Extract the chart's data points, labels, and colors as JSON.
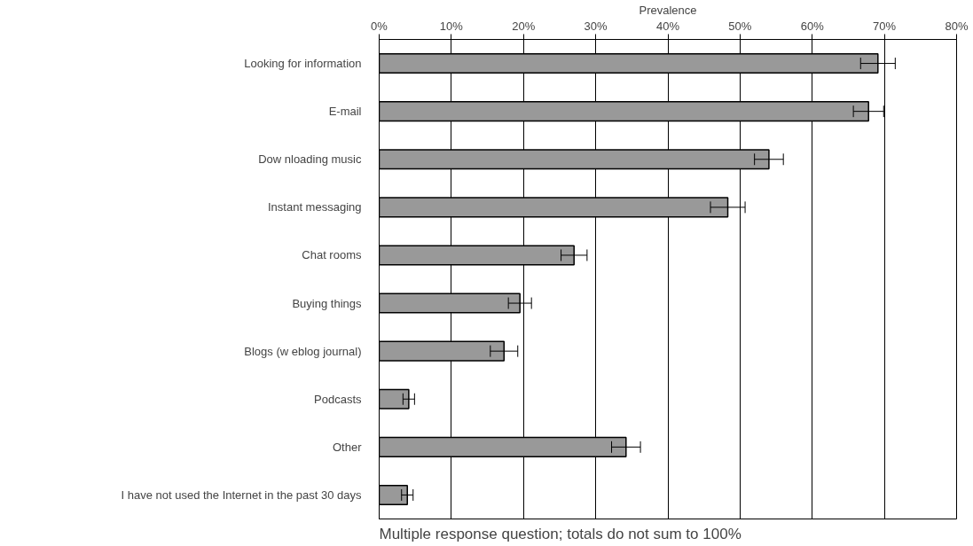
{
  "chart_data": {
    "type": "bar",
    "orientation": "horizontal",
    "xlabel": "Prevalence",
    "categories": [
      "Looking for information",
      "E-mail",
      "Dow nloading music",
      "Instant messaging",
      "Chat rooms",
      "Buying things",
      "Blogs (w eblog journal)",
      "Podcasts",
      "Other",
      "I have not used the Internet in the past 30 days"
    ],
    "values": [
      69.1,
      67.8,
      54.0,
      48.3,
      27.0,
      19.5,
      17.3,
      4.1,
      34.2,
      3.9
    ],
    "errors": [
      2.4,
      2.1,
      2.0,
      2.4,
      1.8,
      1.6,
      1.9,
      0.8,
      2.0,
      0.8
    ],
    "color": "#999999",
    "xlim": [
      0,
      80
    ],
    "xticks": [
      {
        "value": 0,
        "label": "0%"
      },
      {
        "value": 10,
        "label": "10%"
      },
      {
        "value": 20,
        "label": "20%"
      },
      {
        "value": 30,
        "label": "30%"
      },
      {
        "value": 40,
        "label": "40%"
      },
      {
        "value": 50,
        "label": "50%"
      },
      {
        "value": 60,
        "label": "60%"
      },
      {
        "value": 70,
        "label": "70%"
      },
      {
        "value": 80,
        "label": "80%"
      }
    ],
    "grid": "x",
    "annotations": [
      "Multiple response question; totals do not sum to 100%"
    ]
  }
}
